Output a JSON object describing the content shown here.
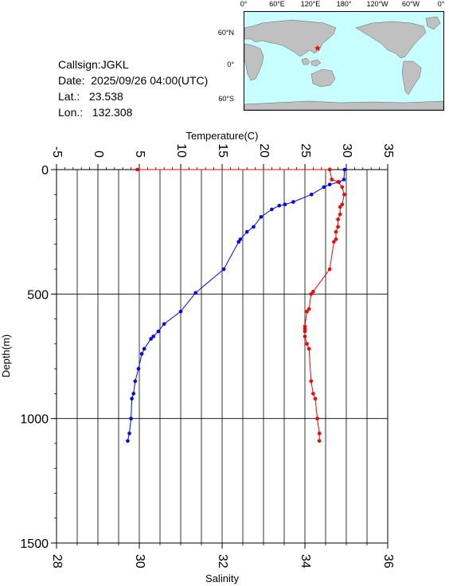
{
  "info": {
    "callsign": "Callsign:JGKL",
    "date": "Date:  2025/09/26 04:00(UTC)",
    "lat": "Lat.:   23.538",
    "lon": "Lon.:   132.308"
  },
  "map": {
    "top_labels": [
      "0°",
      "60°E",
      "120°E",
      "180°",
      "120°W",
      "60°W",
      "0°"
    ],
    "right_labels": [
      "60°N",
      "0°",
      "60°S"
    ],
    "ocean_color": "#c8ffff",
    "land_color": "#c0c0c0",
    "marker_color": "#ff0000",
    "marker_lon": 132.308,
    "marker_lat": 23.538
  },
  "chart_data": {
    "type": "line",
    "top_axis_label": "Temperature(C)",
    "bottom_axis_label": "Salinity",
    "y_axis_label": "Depth(m)",
    "temperature_range": [
      -5,
      35
    ],
    "temperature_ticks": [
      "-5",
      "0",
      "5",
      "10",
      "15",
      "20",
      "25",
      "30",
      "35"
    ],
    "salinity_range": [
      28,
      36
    ],
    "salinity_ticks": [
      "28",
      "30",
      "32",
      "34",
      "36"
    ],
    "depth_range": [
      0,
      1500
    ],
    "depth_ticks": [
      "0",
      "500",
      "1000",
      "1500"
    ],
    "grid": true,
    "series": [
      {
        "color": "#0000ff",
        "axis": "temperature",
        "points": [
          [
            29.8,
            0
          ],
          [
            29.7,
            40
          ],
          [
            29.1,
            50
          ],
          [
            28.0,
            60
          ],
          [
            27.3,
            70
          ],
          [
            25.8,
            100
          ],
          [
            23.6,
            130
          ],
          [
            22.6,
            140
          ],
          [
            21.9,
            145
          ],
          [
            21.0,
            160
          ],
          [
            19.7,
            190
          ],
          [
            18.8,
            230
          ],
          [
            18.0,
            250
          ],
          [
            17.2,
            280
          ],
          [
            17.0,
            290
          ],
          [
            15.2,
            400
          ],
          [
            11.8,
            495
          ],
          [
            10.0,
            570
          ],
          [
            8.0,
            620
          ],
          [
            7.3,
            650
          ],
          [
            6.7,
            670
          ],
          [
            6.4,
            680
          ],
          [
            5.6,
            720
          ],
          [
            5.3,
            740
          ],
          [
            4.9,
            800
          ],
          [
            4.5,
            850
          ],
          [
            4.3,
            900
          ],
          [
            4.1,
            920
          ],
          [
            4.0,
            1000
          ],
          [
            3.8,
            1060
          ],
          [
            3.6,
            1090
          ]
        ]
      },
      {
        "color": "#ff0000",
        "axis": "salinity",
        "points": [
          [
            29.95,
            0
          ],
          [
            34.6,
            0
          ],
          [
            34.65,
            40
          ],
          [
            34.8,
            50
          ],
          [
            34.9,
            70
          ],
          [
            34.95,
            100
          ],
          [
            34.9,
            140
          ],
          [
            34.85,
            150
          ],
          [
            34.85,
            180
          ],
          [
            34.8,
            200
          ],
          [
            34.8,
            230
          ],
          [
            34.75,
            250
          ],
          [
            34.75,
            280
          ],
          [
            34.7,
            290
          ],
          [
            34.6,
            400
          ],
          [
            34.2,
            490
          ],
          [
            34.15,
            500
          ],
          [
            34.1,
            560
          ],
          [
            34.05,
            570
          ],
          [
            34.0,
            630
          ],
          [
            34.0,
            640
          ],
          [
            34.0,
            650
          ],
          [
            34.0,
            670
          ],
          [
            34.05,
            700
          ],
          [
            34.1,
            720
          ],
          [
            34.15,
            850
          ],
          [
            34.2,
            900
          ],
          [
            34.25,
            920
          ],
          [
            34.3,
            1000
          ],
          [
            34.35,
            1060
          ],
          [
            34.35,
            1090
          ]
        ]
      }
    ]
  }
}
